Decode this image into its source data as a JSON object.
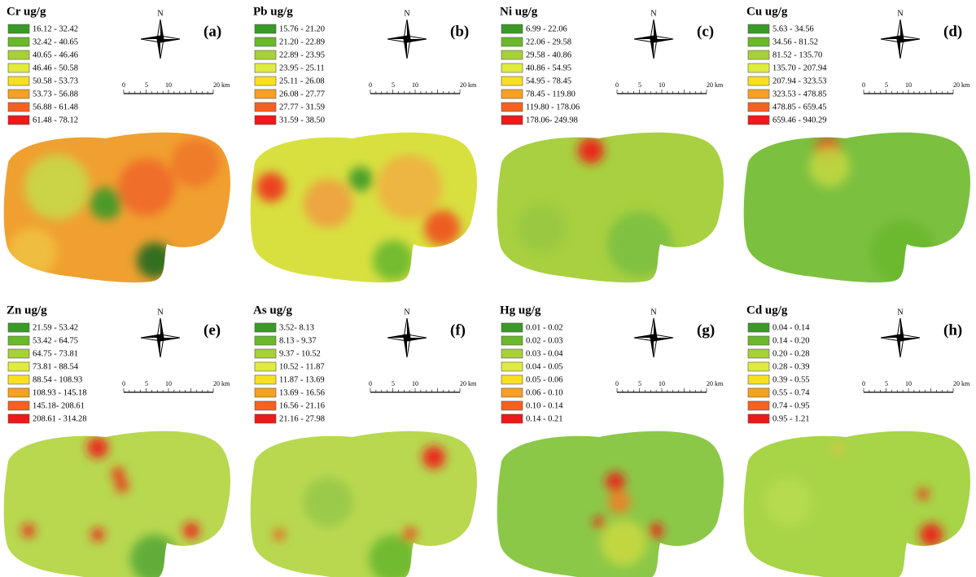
{
  "panels": [
    {
      "title": "Cr ug/g",
      "label": "(a)",
      "legend": [
        "16.12 - 32.42",
        "32.42 - 40.65",
        "40.65 - 46.46",
        "46.46 - 50.58",
        "50.58 - 53.73",
        "53.73 - 56.88",
        "56.88 - 61.48",
        "61.48 - 78.12"
      ]
    },
    {
      "title": "Pb ug/g",
      "label": "(b)",
      "legend": [
        "15.76 - 21.20",
        "21.20 - 22.89",
        "22.89 - 23.95",
        "23.95 - 25.11",
        "25.11 - 26.08",
        "26.08 - 27.77",
        "27.77 - 31.59",
        "31.59 - 38.50"
      ]
    },
    {
      "title": "Ni ug/g",
      "label": "(c)",
      "legend": [
        "6.99 - 22.06",
        "22.06 - 29.58",
        "29.58 - 40.86",
        "40.86 - 54.95",
        "54.95 - 78.45",
        "78.45 - 119.80",
        "119.80 - 178.06",
        "178.06- 249.98"
      ]
    },
    {
      "title": "Cu ug/g",
      "label": "(d)",
      "legend": [
        "5.63 - 34.56",
        "34.56 - 81.52",
        "81.52 - 135.70",
        "135.70 - 207.94",
        "207.94 - 323.53",
        "323.53 - 478.85",
        "478.85 - 659.45",
        "659.46 - 940.29"
      ]
    },
    {
      "title": "Zn ug/g",
      "label": "(e)",
      "legend": [
        "21.59 - 53.42",
        "53.42 - 64.75",
        "64.75 - 73.81",
        "73.81 - 88.54",
        "88.54 - 108.93",
        "108.93 - 145.18",
        "145.18- 208.61",
        "208.61 - 314.28"
      ]
    },
    {
      "title": "As ug/g",
      "label": "(f)",
      "legend": [
        "3.52- 8.13",
        "8.13 - 9.37",
        "9.37 - 10.52",
        "10.52 - 11.87",
        "11.87 - 13.69",
        "13.69 - 16.56",
        "16.56 - 21.16",
        "21.16 - 27.98"
      ]
    },
    {
      "title": "Hg ug/g",
      "label": "(g)",
      "legend": [
        "0.01 - 0.02",
        "0.02 - 0.03",
        "0.03 - 0.04",
        "0.04 - 0.05",
        "0.05 - 0.06",
        "0.06 - 0.10",
        "0.10 - 0.14",
        "0.14 - 0.21"
      ]
    },
    {
      "title": "Cd ug/g",
      "label": "(h)",
      "legend": [
        "0.04 - 0.14",
        "0.14 - 0.20",
        "0.20 - 0.28",
        "0.28 - 0.39",
        "0.39 - 0.55",
        "0.55 - 0.74",
        "0.74 - 0.95",
        "0.95 - 1.21"
      ]
    }
  ],
  "compass_label": "N",
  "scale_bar": [
    "0",
    "5",
    "10",
    "20 km"
  ]
}
